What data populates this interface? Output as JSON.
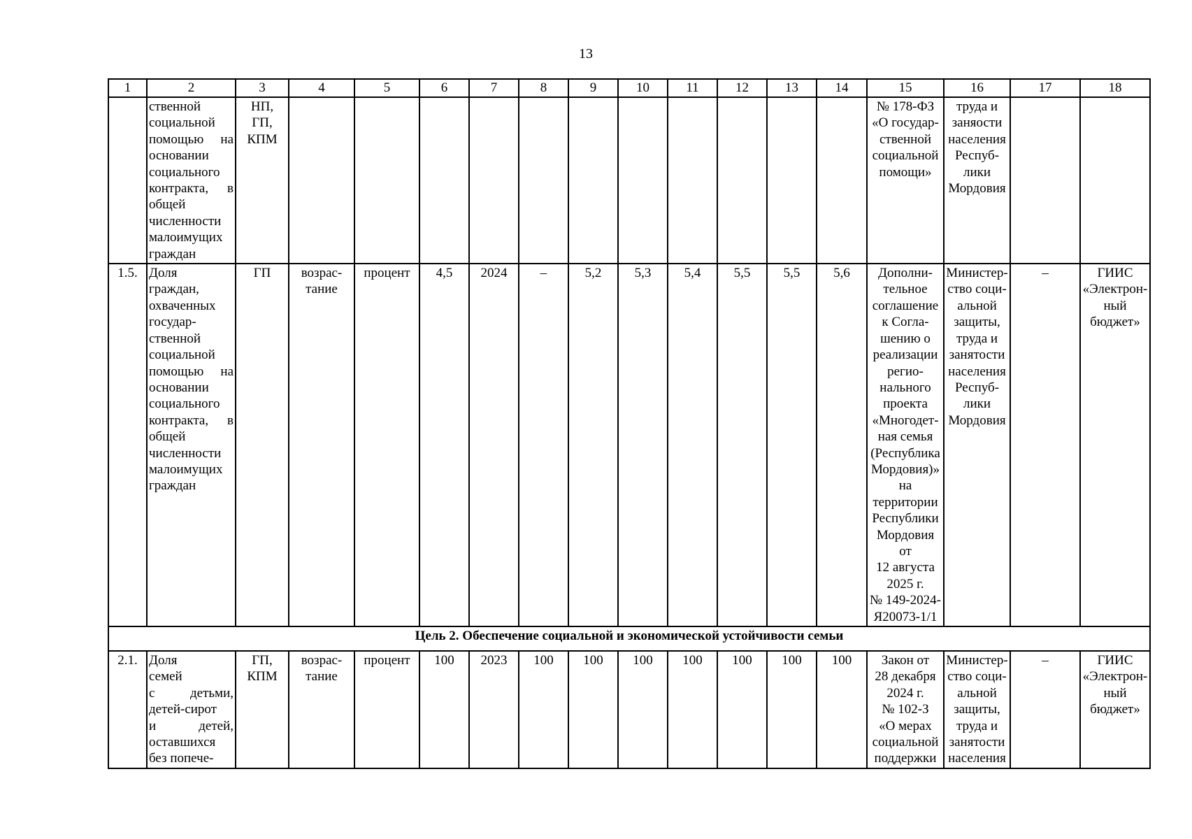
{
  "page_number": "13",
  "table": {
    "column_headers": [
      "1",
      "2",
      "3",
      "4",
      "5",
      "6",
      "7",
      "8",
      "9",
      "10",
      "11",
      "12",
      "13",
      "14",
      "15",
      "16",
      "17",
      "18"
    ],
    "section_header": "Цель 2. Обеспечение социальной и экономической устойчивости семьи",
    "rows": [
      {
        "cells": [
          "",
          "ственной\nсоциальной\nпомощью на\nосновании\nсоциального\nконтракта, в\nобщей\nчисленности\nмалоимущих\nграждан",
          "НП,\nГП,\nКПМ",
          "",
          "",
          "",
          "",
          "",
          "",
          "",
          "",
          "",
          "",
          "",
          "№ 178-ФЗ\n«О государ-\nственной\nсоциальной\nпомощи»",
          "труда и\nзаняости\nнаселения\nРеспуб-\nлики\nМордовия",
          "",
          ""
        ]
      },
      {
        "cells": [
          "1.5.",
          "Доля\nграждан,\nохваченных\nгосудар-\nственной\nсоциальной\nпомощью на\nосновании\nсоциального\nконтракта, в\nобщей\nчисленности\nмалоимущих\nграждан",
          "ГП",
          "возрас-\nтание",
          "процент",
          "4,5",
          "2024",
          "–",
          "5,2",
          "5,3",
          "5,4",
          "5,5",
          "5,5",
          "5,6",
          "Дополни-\nтельное\nсоглашение\nк Согла-\nшению о\nреализации\nрегио-\nнального\nпроекта\n«Многодет-\nная семья\n(Республика\nМордовия)»\nна\nтерритории\nРеспублики\nМордовия\nот\n12 августа\n2025 г.\n№ 149-2024-\nЯ20073-1/1",
          "Министер-\nство соци-\nальной\nзащиты,\nтруда и\nзанятости\nнаселения\nРеспуб-\nлики\nМордовия",
          "–",
          "ГИИС\n«Электрон-\nный\nбюджет»"
        ]
      },
      {
        "cells": [
          "2.1.",
          "Доля\nсемей\nс детьми,\nдетей-сирот\nи детей,\nоставшихся\nбез попече-",
          "ГП,\nКПМ",
          "возрас-\nтание",
          "процент",
          "100",
          "2023",
          "100",
          "100",
          "100",
          "100",
          "100",
          "100",
          "100",
          "Закон от\n28 декабря\n2024 г.\n№ 102-З\n«О мерах\nсоциальной\nподдержки",
          "Министер-\nство соци-\nальной\nзащиты,\nтруда и\nзанятости\nнаселения",
          "–",
          "ГИИС\n«Электрон-\nный\nбюджет»"
        ]
      }
    ]
  }
}
